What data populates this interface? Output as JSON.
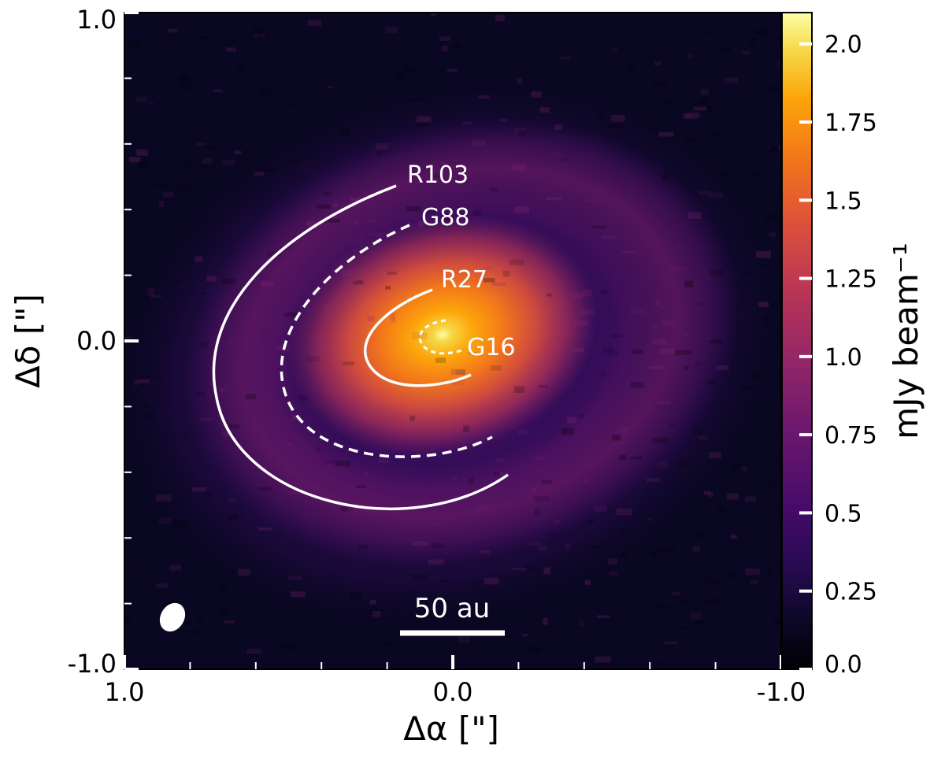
{
  "chart_data": {
    "type": "heatmap",
    "title": "",
    "xlabel": "Δα [\"]",
    "ylabel": "Δδ [\"]",
    "xlim": [
      1.0,
      -1.0
    ],
    "ylim": [
      -1.0,
      1.0
    ],
    "x_ticks": [
      {
        "value": 1.0,
        "label": "1.0"
      },
      {
        "value": 0.0,
        "label": "0.0"
      },
      {
        "value": -1.0,
        "label": "-1.0"
      }
    ],
    "y_ticks": [
      {
        "value": 1.0,
        "label": "1.0"
      },
      {
        "value": 0.0,
        "label": "0.0"
      },
      {
        "value": -1.0,
        "label": "-1.0"
      }
    ],
    "minor_tick_step": 0.2,
    "colormap": "inferno",
    "colorbar": {
      "label": "mJy beam⁻¹",
      "range": [
        0.0,
        2.1
      ],
      "ticks": [
        {
          "value": 0.0,
          "label": "0.0"
        },
        {
          "value": 0.25,
          "label": "0.25"
        },
        {
          "value": 0.5,
          "label": "0.5"
        },
        {
          "value": 0.75,
          "label": "0.75"
        },
        {
          "value": 1.0,
          "label": "1.0"
        },
        {
          "value": 1.25,
          "label": "1.25"
        },
        {
          "value": 1.5,
          "label": "1.5"
        },
        {
          "value": 1.75,
          "label": "1.75"
        },
        {
          "value": 2.0,
          "label": "2.0"
        }
      ]
    },
    "annotations": [
      {
        "name": "R103",
        "label": "R103",
        "style": "solid",
        "radius_arcsec": 0.48
      },
      {
        "name": "G88",
        "label": "G88",
        "style": "dashed",
        "radius_arcsec": 0.38
      },
      {
        "name": "R27",
        "label": "R27",
        "style": "solid",
        "radius_arcsec": 0.165
      },
      {
        "name": "G16",
        "label": "G16",
        "style": "dashed",
        "radius_arcsec": 0.055
      }
    ],
    "scale_bar": {
      "label": "50 au"
    },
    "beam": {
      "shape": "ellipse"
    }
  },
  "colors": {
    "ring_stroke": "#ffffff",
    "frame": "#000000"
  }
}
